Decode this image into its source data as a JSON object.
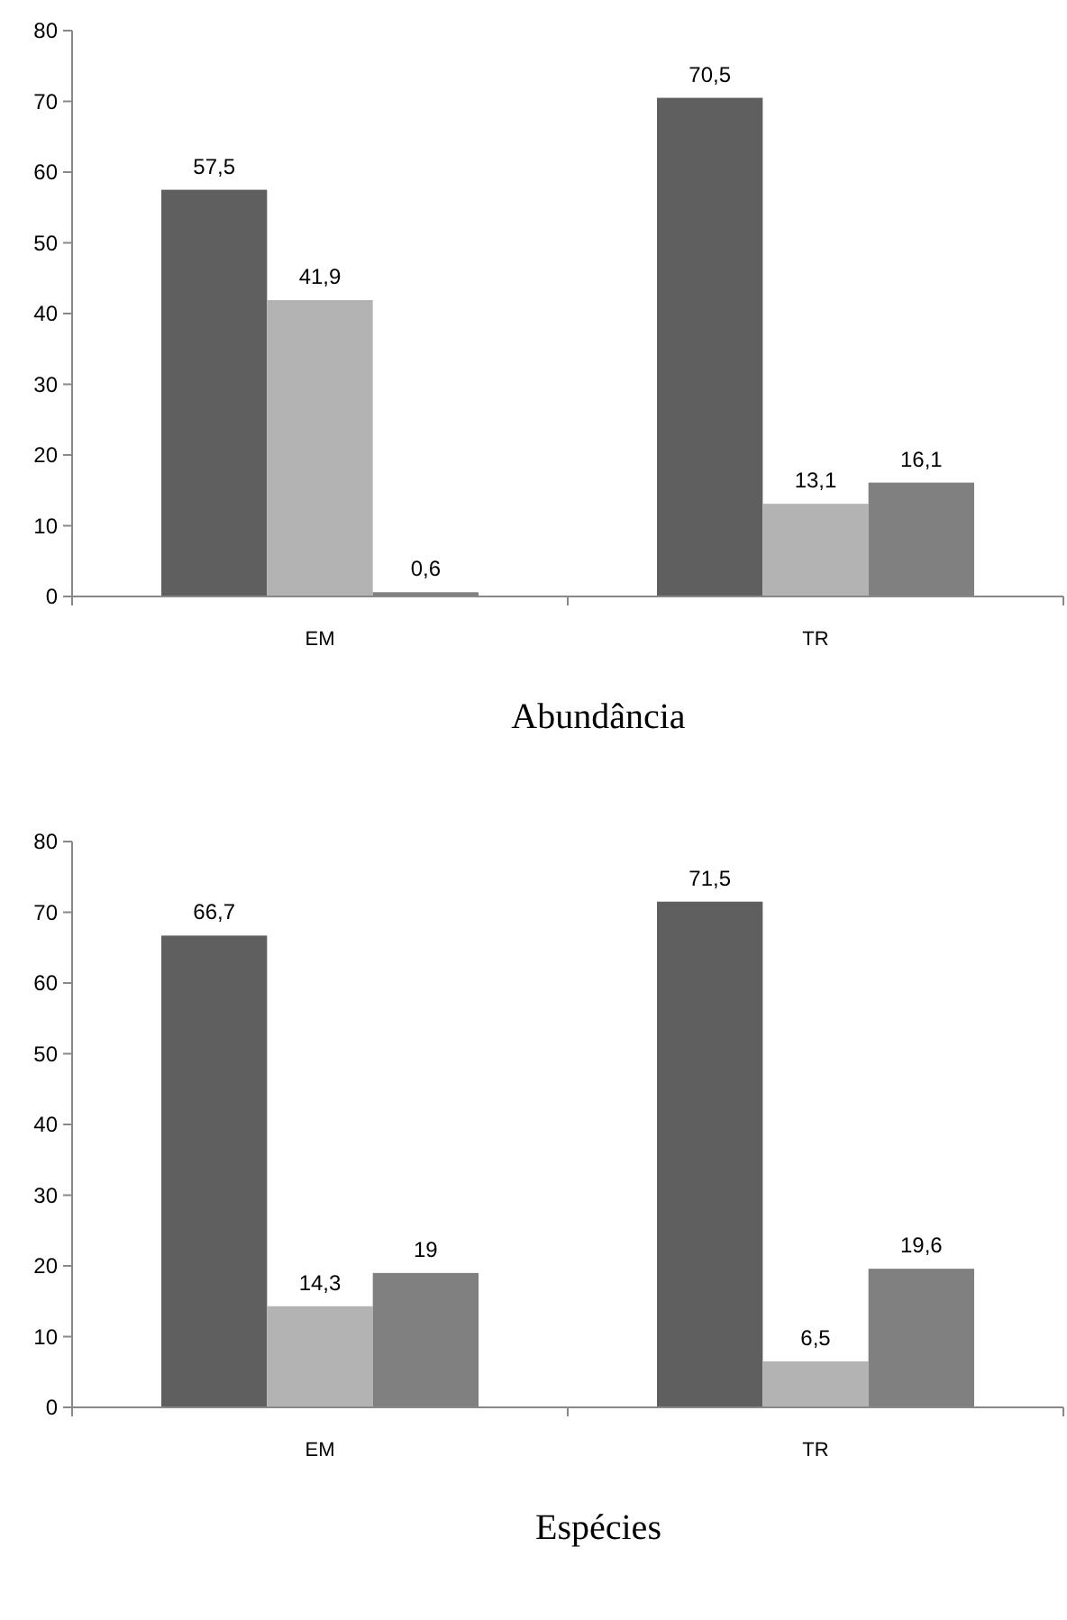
{
  "chart_data": [
    {
      "type": "bar",
      "title": "Abundância",
      "categories": [
        "EM",
        "TR"
      ],
      "ylim": [
        0,
        80
      ],
      "yticks": [
        0,
        10,
        20,
        30,
        40,
        50,
        60,
        70,
        80
      ],
      "grid": false,
      "series": [
        {
          "color": "#5f5f5f",
          "values": [
            57.5,
            70.5
          ],
          "value_labels": [
            "57,5",
            "70,5"
          ]
        },
        {
          "color": "#b3b3b3",
          "values": [
            41.9,
            13.1
          ],
          "value_labels": [
            "41,9",
            "13,1"
          ]
        },
        {
          "color": "#808080",
          "values": [
            0.6,
            16.1
          ],
          "value_labels": [
            "0,6",
            "16,1"
          ]
        }
      ]
    },
    {
      "type": "bar",
      "title": "Espécies",
      "categories": [
        "EM",
        "TR"
      ],
      "ylim": [
        0,
        80
      ],
      "yticks": [
        0,
        10,
        20,
        30,
        40,
        50,
        60,
        70,
        80
      ],
      "grid": false,
      "series": [
        {
          "color": "#5f5f5f",
          "values": [
            66.7,
            71.5
          ],
          "value_labels": [
            "66,7",
            "71,5"
          ]
        },
        {
          "color": "#b3b3b3",
          "values": [
            14.3,
            6.5
          ],
          "value_labels": [
            "14,3",
            "6,5"
          ]
        },
        {
          "color": "#808080",
          "values": [
            19,
            19.6
          ],
          "value_labels": [
            "19",
            "19,6"
          ]
        }
      ]
    }
  ]
}
